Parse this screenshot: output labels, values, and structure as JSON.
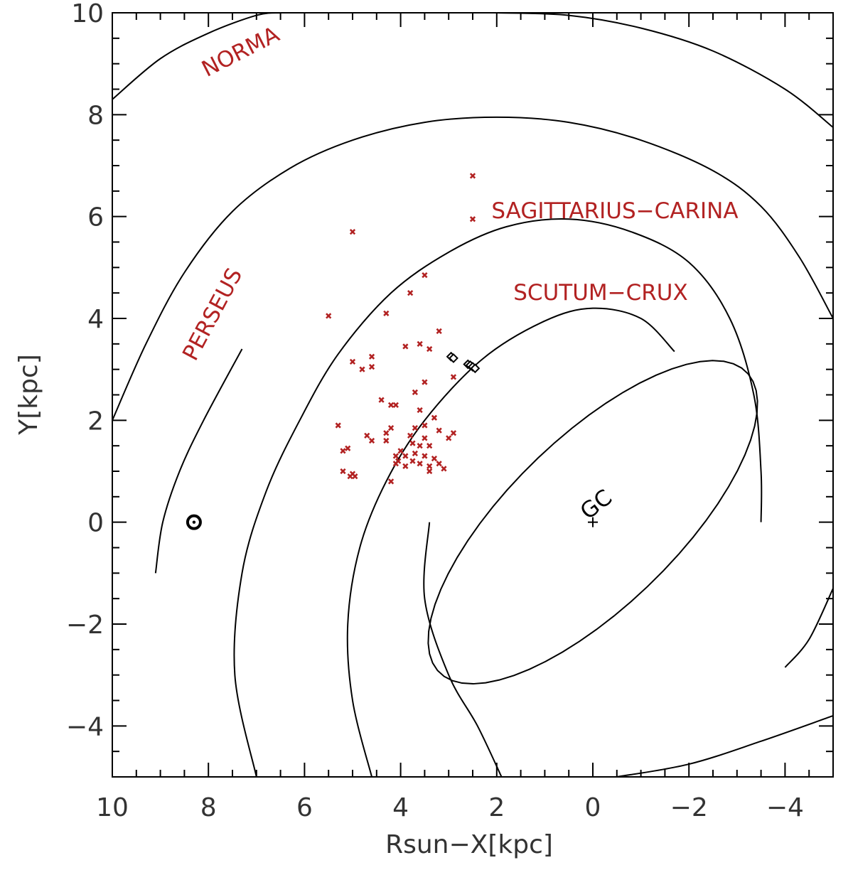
{
  "chart_data": {
    "type": "scatter",
    "title": "",
    "xlabel": "Rsun−X[kpc]",
    "ylabel": "Y[kpc]",
    "xlim": [
      10,
      -5
    ],
    "ylim": [
      -5,
      10
    ],
    "x_inverted": true,
    "grid": false,
    "x_ticks": [
      "10",
      "8",
      "6",
      "4",
      "2",
      "0",
      "−2",
      "−4"
    ],
    "y_ticks": [
      "−4",
      "−2",
      "0",
      "2",
      "4",
      "6",
      "8",
      "10"
    ],
    "colors": {
      "axes": "#000000",
      "text": "#333333",
      "arm_label": "#b22222",
      "points": "#b22222",
      "diamonds": "#000000"
    },
    "annotations": {
      "norma": "NORMA",
      "perseus": "PERSEUS",
      "sagittarius_carina": "SAGITTARIUS−CARINA",
      "scutum_crux": "SCUTUM−CRUX",
      "galactic_center": "GC"
    },
    "sun": {
      "x": 8.3,
      "y": 0.0,
      "marker": "sun-symbol"
    },
    "galactic_center": {
      "x": 0.0,
      "y": 0.0,
      "marker": "plus"
    },
    "series": [
      {
        "marker": "x",
        "color": "#b22222",
        "points": [
          [
            2.5,
            6.8
          ],
          [
            2.5,
            5.95
          ],
          [
            5.0,
            5.7
          ],
          [
            3.5,
            4.85
          ],
          [
            3.8,
            4.5
          ],
          [
            5.5,
            4.05
          ],
          [
            4.3,
            4.1
          ],
          [
            3.2,
            3.75
          ],
          [
            3.6,
            3.5
          ],
          [
            3.9,
            3.45
          ],
          [
            3.4,
            3.4
          ],
          [
            4.6,
            3.25
          ],
          [
            5.0,
            3.15
          ],
          [
            4.6,
            3.05
          ],
          [
            4.8,
            3.0
          ],
          [
            2.9,
            2.85
          ],
          [
            3.5,
            2.75
          ],
          [
            3.7,
            2.55
          ],
          [
            4.4,
            2.4
          ],
          [
            4.2,
            2.3
          ],
          [
            4.1,
            2.3
          ],
          [
            3.6,
            2.2
          ],
          [
            3.3,
            2.05
          ],
          [
            5.3,
            1.9
          ],
          [
            3.5,
            1.9
          ],
          [
            3.7,
            1.85
          ],
          [
            4.2,
            1.85
          ],
          [
            3.2,
            1.8
          ],
          [
            4.3,
            1.75
          ],
          [
            2.9,
            1.75
          ],
          [
            4.7,
            1.7
          ],
          [
            3.8,
            1.7
          ],
          [
            3.5,
            1.65
          ],
          [
            3.0,
            1.65
          ],
          [
            4.6,
            1.6
          ],
          [
            4.3,
            1.6
          ],
          [
            3.75,
            1.55
          ],
          [
            3.6,
            1.5
          ],
          [
            3.4,
            1.5
          ],
          [
            5.1,
            1.45
          ],
          [
            5.2,
            1.4
          ],
          [
            4.0,
            1.4
          ],
          [
            3.7,
            1.35
          ],
          [
            4.1,
            1.3
          ],
          [
            3.9,
            1.3
          ],
          [
            3.5,
            1.3
          ],
          [
            3.3,
            1.25
          ],
          [
            4.05,
            1.2
          ],
          [
            3.75,
            1.2
          ],
          [
            4.1,
            1.15
          ],
          [
            3.6,
            1.15
          ],
          [
            3.2,
            1.15
          ],
          [
            3.9,
            1.1
          ],
          [
            3.4,
            1.1
          ],
          [
            3.1,
            1.05
          ],
          [
            3.4,
            1.0
          ],
          [
            5.2,
            1.0
          ],
          [
            5.0,
            0.95
          ],
          [
            4.95,
            0.9
          ],
          [
            5.05,
            0.9
          ],
          [
            4.2,
            0.8
          ]
        ]
      },
      {
        "marker": "diamond",
        "color": "#000000",
        "points": [
          [
            2.95,
            3.25
          ],
          [
            2.9,
            3.22
          ],
          [
            2.6,
            3.1
          ],
          [
            2.55,
            3.08
          ],
          [
            2.5,
            3.05
          ],
          [
            2.45,
            3.02
          ]
        ]
      }
    ],
    "spiral_arms": [
      {
        "name": "NORMA",
        "polyline": [
          [
            10.0,
            8.3
          ],
          [
            9.0,
            9.1
          ],
          [
            8.0,
            9.6
          ],
          [
            7.0,
            9.95
          ],
          [
            6.5,
            10.0
          ]
        ]
      },
      {
        "name": "NORMA (inner side)",
        "polyline": [
          [
            2.0,
            10.0
          ],
          [
            0.5,
            9.95
          ],
          [
            -1.0,
            9.7
          ],
          [
            -2.5,
            9.25
          ],
          [
            -4.0,
            8.5
          ],
          [
            -5.0,
            7.75
          ]
        ]
      },
      {
        "name": "PERSEUS",
        "polyline": [
          [
            10.0,
            2.0
          ],
          [
            9.3,
            3.5
          ],
          [
            8.5,
            4.9
          ],
          [
            7.5,
            6.1
          ],
          [
            6.3,
            6.95
          ],
          [
            5.0,
            7.5
          ],
          [
            3.5,
            7.85
          ],
          [
            2.0,
            7.95
          ],
          [
            0.5,
            7.85
          ],
          [
            -1.0,
            7.5
          ],
          [
            -2.5,
            6.9
          ],
          [
            -3.5,
            6.2
          ],
          [
            -4.3,
            5.2
          ],
          [
            -5.0,
            4.0
          ]
        ]
      },
      {
        "name": "PERSEUS (near Sun)",
        "polyline": [
          [
            9.1,
            -1.0
          ],
          [
            8.95,
            0.0
          ],
          [
            8.6,
            1.0
          ],
          [
            8.1,
            2.0
          ],
          [
            7.3,
            3.4
          ]
        ]
      },
      {
        "name": "SAGITTARIUS-CARINA",
        "polyline": [
          [
            7.0,
            -5.0
          ],
          [
            7.45,
            -3.0
          ],
          [
            7.3,
            -1.0
          ],
          [
            6.8,
            0.6
          ],
          [
            6.1,
            2.0
          ],
          [
            5.3,
            3.3
          ],
          [
            4.2,
            4.5
          ],
          [
            3.0,
            5.3
          ],
          [
            1.8,
            5.8
          ],
          [
            0.5,
            5.95
          ],
          [
            -0.8,
            5.7
          ],
          [
            -2.0,
            5.1
          ],
          [
            -2.85,
            4.0
          ],
          [
            -3.35,
            2.5
          ],
          [
            -3.5,
            1.0
          ],
          [
            -3.5,
            0.0
          ]
        ]
      },
      {
        "name": "SCUTUM-CRUX",
        "polyline": [
          [
            4.6,
            -5.0
          ],
          [
            5.0,
            -3.5
          ],
          [
            5.1,
            -2.0
          ],
          [
            4.85,
            -0.5
          ],
          [
            4.3,
            0.8
          ],
          [
            3.5,
            2.0
          ],
          [
            2.3,
            3.2
          ],
          [
            1.0,
            3.95
          ],
          [
            0.0,
            4.2
          ],
          [
            -1.0,
            4.0
          ],
          [
            -1.7,
            3.35
          ]
        ]
      },
      {
        "name": "SCUTUM-CRUX (tail)",
        "polyline": [
          [
            3.4,
            0.0
          ],
          [
            3.5,
            -1.5
          ],
          [
            3.0,
            -3.0
          ],
          [
            2.4,
            -4.0
          ],
          [
            1.9,
            -5.0
          ]
        ]
      },
      {
        "name": "outer arc (lower right)",
        "polyline": [
          [
            -0.5,
            -5.0
          ],
          [
            -2.0,
            -4.75
          ],
          [
            -3.5,
            -4.3
          ],
          [
            -5.0,
            -3.8
          ]
        ]
      },
      {
        "name": "short arc (right)",
        "polyline": [
          [
            -4.0,
            -2.85
          ],
          [
            -4.5,
            -2.3
          ],
          [
            -5.0,
            -1.3
          ]
        ]
      }
    ],
    "bar_ellipse": {
      "cx": 0.0,
      "cy": 0.0,
      "rx": 4.35,
      "ry": 1.7,
      "angle_deg": 42
    }
  }
}
